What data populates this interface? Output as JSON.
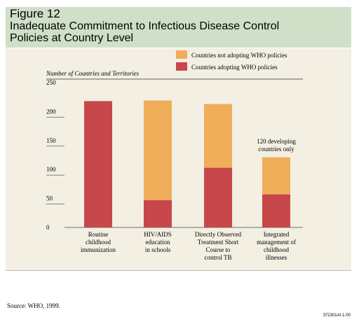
{
  "figure_label": "Figure 12",
  "figure_title": "Inadequate Commitment to Infectious Disease Control Policies at Country Level",
  "source": "Source: WHO, 1999.",
  "figure_code": "372301AI 1-00",
  "colors": {
    "adopting": "#c8474a",
    "not_adopting": "#f0ad5a",
    "panel": "#f3efe2",
    "header": "#cfdfc8"
  },
  "chart_data": {
    "type": "bar",
    "stacked": true,
    "ylabel": "Number of Countries and Territories",
    "ylim": [
      0,
      250
    ],
    "yticks": [
      "0",
      "50",
      "100",
      "150",
      "200",
      "250"
    ],
    "categories": [
      [
        "Routine",
        "childhood",
        "immunization"
      ],
      [
        "HIV/AIDS",
        "education",
        "in schools"
      ],
      [
        "Directly Observed",
        "Treatment Short",
        "Course to",
        "control TB"
      ],
      [
        "Integrated",
        "management of",
        "childhood",
        "illnesses"
      ]
    ],
    "series": [
      {
        "name": "Countries adopting WHO policies",
        "values": [
          218,
          47,
          103,
          57
        ]
      },
      {
        "name": "Countries not adopting WHO policies",
        "values": [
          0,
          172,
          110,
          64
        ]
      }
    ],
    "annotation": [
      "120 developing",
      "countries only"
    ],
    "legend_position": "top-right"
  }
}
